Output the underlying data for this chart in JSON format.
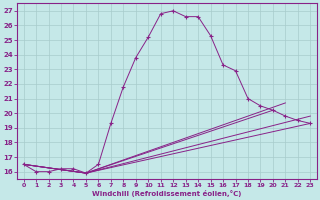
{
  "xlabel": "Windchill (Refroidissement éolien,°C)",
  "xlim": [
    -0.5,
    23.5
  ],
  "ylim": [
    15.5,
    27.5
  ],
  "xticks": [
    0,
    1,
    2,
    3,
    4,
    5,
    6,
    7,
    8,
    9,
    10,
    11,
    12,
    13,
    14,
    15,
    16,
    17,
    18,
    19,
    20,
    21,
    22,
    23
  ],
  "yticks": [
    16,
    17,
    18,
    19,
    20,
    21,
    22,
    23,
    24,
    25,
    26,
    27
  ],
  "bg_color": "#c5e8e8",
  "line_color": "#882288",
  "grid_color": "#a8cccc",
  "main_x": [
    0,
    1,
    2,
    3,
    4,
    5,
    6,
    7,
    8,
    9,
    10,
    11,
    12,
    13,
    14,
    15,
    16,
    17,
    18,
    19,
    20,
    21,
    22,
    23
  ],
  "main_y": [
    16.5,
    16.0,
    16.0,
    16.2,
    16.2,
    15.9,
    16.5,
    19.3,
    21.8,
    23.8,
    25.2,
    26.8,
    27.0,
    26.6,
    26.6,
    25.3,
    23.3,
    22.9,
    21.0,
    20.5,
    20.2,
    19.8,
    19.5,
    19.3
  ],
  "extra_lines": [
    {
      "x": [
        0,
        5,
        23
      ],
      "y": [
        16.5,
        15.9,
        19.3
      ]
    },
    {
      "x": [
        0,
        5,
        21
      ],
      "y": [
        16.5,
        15.9,
        20.7
      ]
    },
    {
      "x": [
        0,
        5,
        20
      ],
      "y": [
        16.5,
        15.9,
        20.2
      ]
    },
    {
      "x": [
        0,
        5,
        23
      ],
      "y": [
        16.5,
        15.9,
        19.8
      ]
    }
  ]
}
